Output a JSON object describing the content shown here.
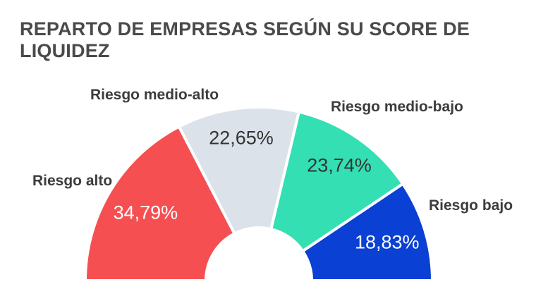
{
  "chart_data": {
    "type": "pie",
    "title": "REPARTO DE EMPRESAS SEGÚN SU SCORE DE LIQUIDEZ",
    "categories": [
      "Riesgo alto",
      "Riesgo medio-alto",
      "Riesgo medio-bajo",
      "Riesgo bajo"
    ],
    "values": [
      34.79,
      22.65,
      23.74,
      18.83
    ],
    "value_labels": [
      "34,79%",
      "22,65%",
      "23,74%",
      "18,83%"
    ],
    "colors": [
      "#f64f52",
      "#dce2ea",
      "#33dfb3",
      "#0a40d4"
    ],
    "value_label_colors": [
      "#ffffff",
      "#333333",
      "#333333",
      "#ffffff"
    ],
    "shape": "semicircle-donut"
  }
}
